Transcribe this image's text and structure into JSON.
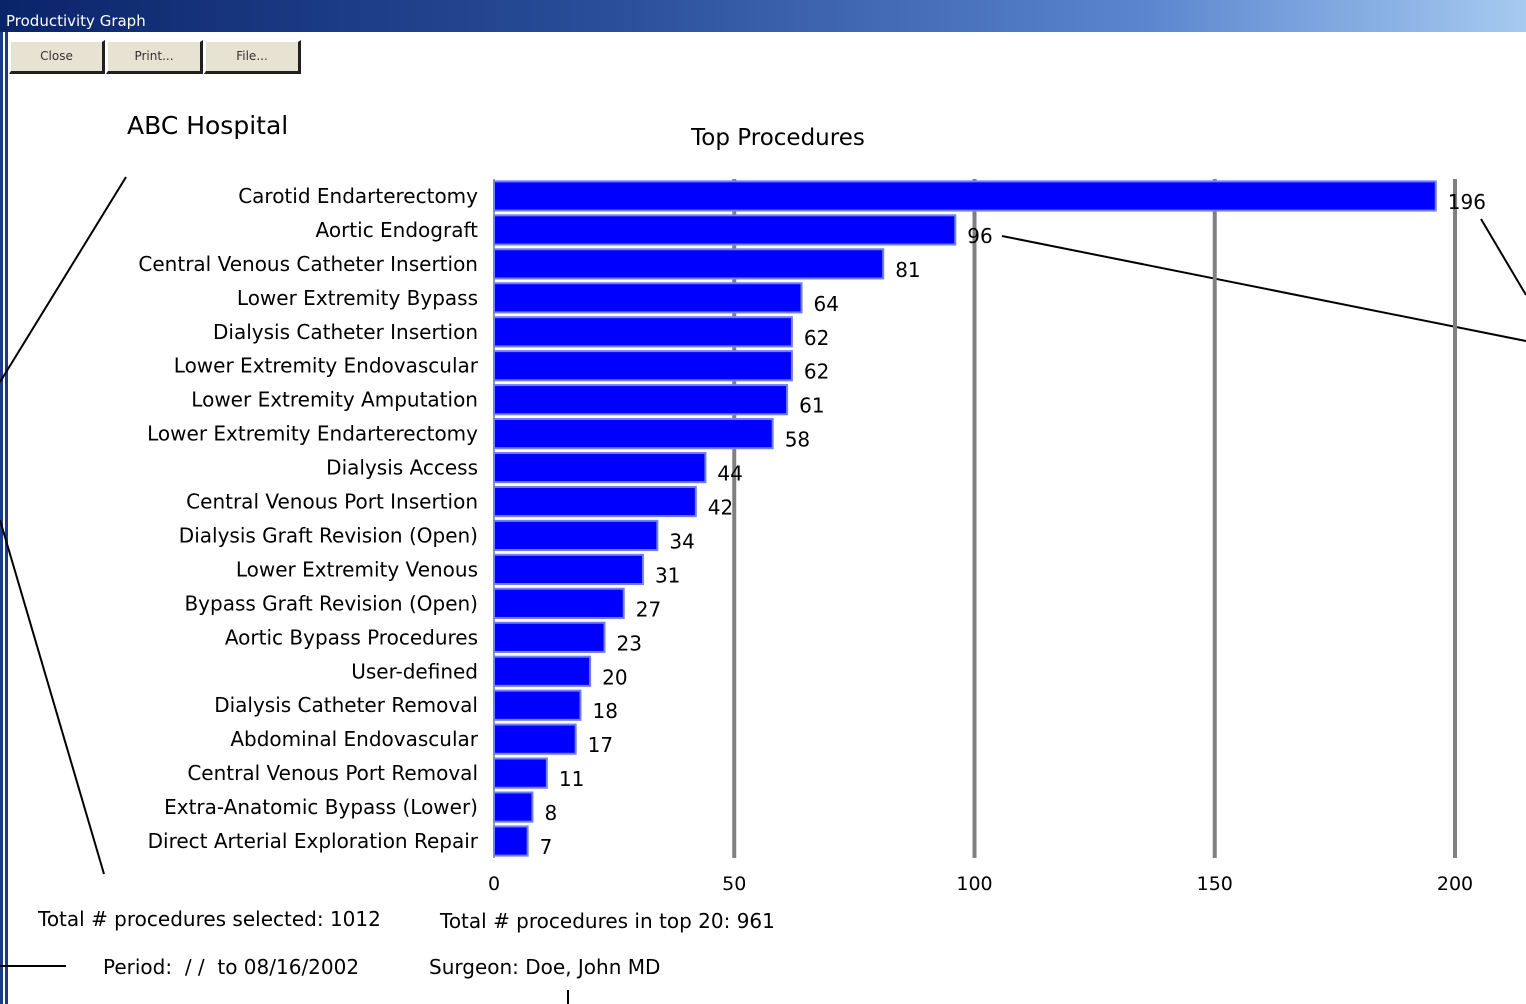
{
  "window": {
    "title": "Productivity Graph"
  },
  "toolbar": {
    "close_label": "Close",
    "print_label": "Print...",
    "file_label": "File..."
  },
  "hospital_name": "ABC Hospital",
  "summary": {
    "total_selected": "Total # procedures selected: 1012",
    "total_top20": "Total # procedures in top 20: 961",
    "period": "Period:  / /  to 08/16/2002",
    "surgeon": "Surgeon: Doe, John MD"
  },
  "colors": {
    "bar": "#0000ff",
    "grid": "#808080",
    "titlebar": "#0a246a"
  },
  "chart_data": {
    "type": "bar",
    "orientation": "horizontal",
    "title": "Top Procedures",
    "categories": [
      "Carotid Endarterectomy",
      "Aortic Endograft",
      "Central Venous Catheter Insertion",
      "Lower Extremity Bypass",
      "Dialysis Catheter Insertion",
      "Lower Extremity Endovascular",
      "Lower Extremity Amputation",
      "Lower Extremity Endarterectomy",
      "Dialysis Access",
      "Central Venous Port Insertion",
      "Dialysis Graft Revision (Open)",
      "Lower Extremity Venous",
      "Bypass Graft Revision (Open)",
      "Aortic Bypass Procedures",
      "User-defined",
      "Dialysis Catheter Removal",
      "Abdominal Endovascular",
      "Central Venous Port Removal",
      "Extra-Anatomic Bypass (Lower)",
      "Direct Arterial Exploration Repair"
    ],
    "values": [
      196,
      96,
      81,
      64,
      62,
      62,
      61,
      58,
      44,
      42,
      34,
      31,
      27,
      23,
      20,
      18,
      17,
      11,
      8,
      7
    ],
    "xlim": [
      0,
      200
    ],
    "xticks": [
      "0",
      "50",
      "100",
      "150",
      "200"
    ],
    "grid": true
  }
}
